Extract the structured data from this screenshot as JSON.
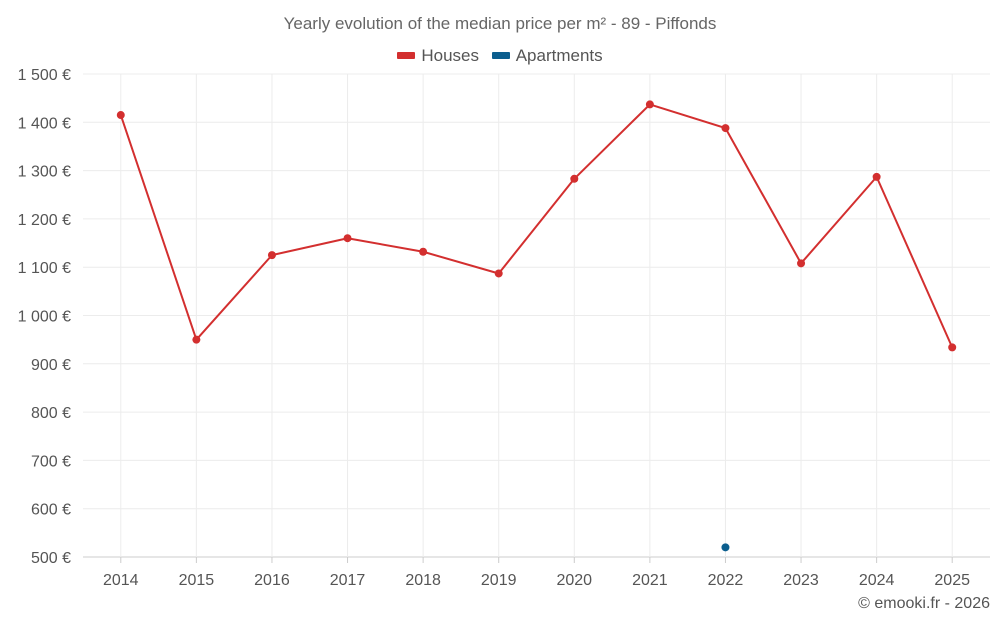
{
  "chart_data": {
    "type": "line",
    "title": "Yearly evolution of the median price per m² - 89 - Piffonds",
    "categories": [
      "2014",
      "2015",
      "2016",
      "2017",
      "2018",
      "2019",
      "2020",
      "2021",
      "2022",
      "2023",
      "2024",
      "2025"
    ],
    "series": [
      {
        "name": "Houses",
        "color": "#d32f2f",
        "values": [
          1415,
          950,
          1125,
          1160,
          1132,
          1087,
          1283,
          1437,
          1388,
          1108,
          1287,
          934
        ]
      },
      {
        "name": "Apartments",
        "color": "#0b5e8e",
        "values": [
          null,
          null,
          null,
          null,
          null,
          null,
          null,
          null,
          520,
          null,
          null,
          null
        ]
      }
    ],
    "yticks": [
      "500 €",
      "600 €",
      "700 €",
      "800 €",
      "900 €",
      "1 000 €",
      "1 100 €",
      "1 200 €",
      "1 300 €",
      "1 400 €",
      "1 500 €"
    ],
    "ylim": [
      500,
      1500
    ],
    "grid": true,
    "legend_position": "top-center"
  },
  "credit": "© emooki.fr - 2026"
}
